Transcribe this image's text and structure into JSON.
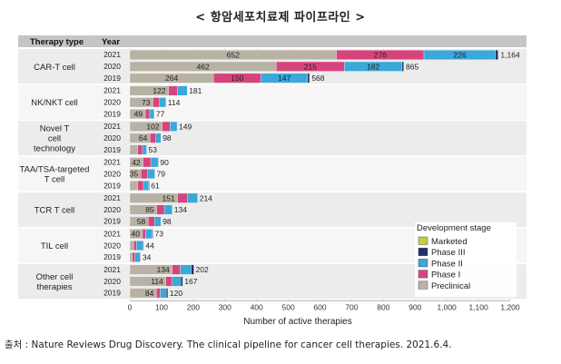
{
  "page_title": "< 항암세포치료제 파이프라인 >",
  "source_note": "출처 : Nature Reviews Drug Discovery. The clinical pipeline for cancer cell therapies. 2021.6.4.",
  "chart_data": {
    "type": "bar",
    "orientation": "horizontal",
    "stacked": true,
    "column_headers": [
      "Therapy type",
      "Year"
    ],
    "xlabel": "Number of active therapies",
    "xlim": [
      0,
      1200
    ],
    "xticks": [
      "0",
      "100",
      "200",
      "300",
      "400",
      "500",
      "600",
      "700",
      "800",
      "900",
      "1,000",
      "1,100",
      "1,200"
    ],
    "grid": true,
    "legend": {
      "title": "Development stage",
      "position": "bottom-right",
      "entries": [
        "Marketed",
        "Phase III",
        "Phase II",
        "Phase I",
        "Preclinical"
      ]
    },
    "series_colors": {
      "Preclinical": "#b8b2a4",
      "Phase I": "#d6447e",
      "Phase II": "#3aa8d8",
      "Phase III": "#1c2f6b",
      "Marketed": "#c8cc3a"
    },
    "stage_order": [
      "Preclinical",
      "Phase I",
      "Phase II",
      "Phase III",
      "Marketed"
    ],
    "groups": [
      {
        "name": "CAR-T cell",
        "rows": [
          {
            "year": "2021",
            "total": 1164,
            "total_label": "1,164",
            "Preclinical": 652,
            "Phase I": 276,
            "Phase II": 226,
            "Phase III": 8,
            "Marketed": 2
          },
          {
            "year": "2020",
            "total": 865,
            "total_label": "865",
            "Preclinical": 462,
            "Phase I": 215,
            "Phase II": 182,
            "Phase III": 5,
            "Marketed": 1
          },
          {
            "year": "2019",
            "total": 568,
            "total_label": "568",
            "Preclinical": 264,
            "Phase I": 150,
            "Phase II": 147,
            "Phase III": 6,
            "Marketed": 1
          }
        ]
      },
      {
        "name": "NK/NKT cell",
        "rows": [
          {
            "year": "2021",
            "total": 181,
            "total_label": "181",
            "Preclinical": 122,
            "Phase I": 28,
            "Phase II": 31,
            "Phase III": 0,
            "Marketed": 0
          },
          {
            "year": "2020",
            "total": 114,
            "total_label": "114",
            "Preclinical": 73,
            "Phase I": 21,
            "Phase II": 20,
            "Phase III": 0,
            "Marketed": 0
          },
          {
            "year": "2019",
            "total": 77,
            "total_label": "77",
            "Preclinical": 49,
            "Phase I": 14,
            "Phase II": 14,
            "Phase III": 0,
            "Marketed": 0
          }
        ]
      },
      {
        "name": "Novel T cell technology",
        "rows": [
          {
            "year": "2021",
            "total": 149,
            "total_label": "149",
            "Preclinical": 102,
            "Phase I": 25,
            "Phase II": 22,
            "Phase III": 0,
            "Marketed": 0
          },
          {
            "year": "2020",
            "total": 98,
            "total_label": "98",
            "Preclinical": 64,
            "Phase I": 18,
            "Phase II": 16,
            "Phase III": 0,
            "Marketed": 0
          },
          {
            "year": "2019",
            "total": 53,
            "total_label": "53",
            "Preclinical": 25,
            "Phase I": 15,
            "Phase II": 13,
            "Phase III": 0,
            "Marketed": 0
          }
        ]
      },
      {
        "name": "TAA/TSA-targeted T cell",
        "rows": [
          {
            "year": "2021",
            "total": 90,
            "total_label": "90",
            "Preclinical": 42,
            "Phase I": 24,
            "Phase II": 23,
            "Phase III": 1,
            "Marketed": 0
          },
          {
            "year": "2020",
            "total": 79,
            "total_label": "79",
            "Preclinical": 35,
            "Phase I": 22,
            "Phase II": 21,
            "Phase III": 1,
            "Marketed": 0
          },
          {
            "year": "2019",
            "total": 61,
            "total_label": "61",
            "Preclinical": 25,
            "Phase I": 18,
            "Phase II": 17,
            "Phase III": 1,
            "Marketed": 0
          }
        ]
      },
      {
        "name": "TCR T cell",
        "rows": [
          {
            "year": "2021",
            "total": 214,
            "total_label": "214",
            "Preclinical": 151,
            "Phase I": 30,
            "Phase II": 33,
            "Phase III": 0,
            "Marketed": 0
          },
          {
            "year": "2020",
            "total": 134,
            "total_label": "134",
            "Preclinical": 85,
            "Phase I": 24,
            "Phase II": 25,
            "Phase III": 0,
            "Marketed": 0
          },
          {
            "year": "2019",
            "total": 98,
            "total_label": "98",
            "Preclinical": 58,
            "Phase I": 20,
            "Phase II": 20,
            "Phase III": 0,
            "Marketed": 0
          }
        ]
      },
      {
        "name": "TIL cell",
        "rows": [
          {
            "year": "2021",
            "total": 73,
            "total_label": "73",
            "Preclinical": 40,
            "Phase I": 10,
            "Phase II": 21,
            "Phase III": 2,
            "Marketed": 0
          },
          {
            "year": "2020",
            "total": 44,
            "total_label": "44",
            "Preclinical": 12,
            "Phase I": 9,
            "Phase II": 21,
            "Phase III": 2,
            "Marketed": 0
          },
          {
            "year": "2019",
            "total": 34,
            "total_label": "34",
            "Preclinical": 8,
            "Phase I": 8,
            "Phase II": 16,
            "Phase III": 2,
            "Marketed": 0
          }
        ]
      },
      {
        "name": "Other cell therapies",
        "rows": [
          {
            "year": "2021",
            "total": 202,
            "total_label": "202",
            "Preclinical": 134,
            "Phase I": 25,
            "Phase II": 35,
            "Phase III": 8,
            "Marketed": 0
          },
          {
            "year": "2020",
            "total": 167,
            "total_label": "167",
            "Preclinical": 114,
            "Phase I": 20,
            "Phase II": 27,
            "Phase III": 6,
            "Marketed": 0
          },
          {
            "year": "2019",
            "total": 120,
            "total_label": "120",
            "Preclinical": 84,
            "Phase I": 12,
            "Phase II": 19,
            "Phase III": 5,
            "Marketed": 0
          }
        ]
      }
    ]
  }
}
